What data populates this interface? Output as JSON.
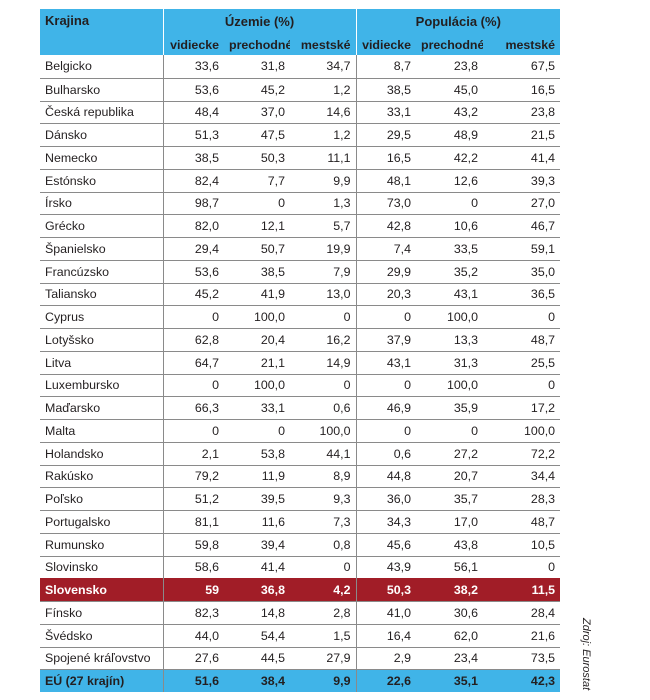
{
  "table": {
    "header": {
      "country": "Krajina",
      "group_area": "Územie (%)",
      "group_population": "Populácia (%)",
      "sub": [
        "vidiecke",
        "prechodné",
        "mestské",
        "vidiecke",
        "prechodné",
        "mestské"
      ]
    },
    "rows": [
      [
        "Belgicko",
        "33,6",
        "31,8",
        "34,7",
        "8,7",
        "23,8",
        "67,5"
      ],
      [
        "Bulharsko",
        "53,6",
        "45,2",
        "1,2",
        "38,5",
        "45,0",
        "16,5"
      ],
      [
        "Česká republika",
        "48,4",
        "37,0",
        "14,6",
        "33,1",
        "43,2",
        "23,8"
      ],
      [
        "Dánsko",
        "51,3",
        "47,5",
        "1,2",
        "29,5",
        "48,9",
        "21,5"
      ],
      [
        "Nemecko",
        "38,5",
        "50,3",
        "11,1",
        "16,5",
        "42,2",
        "41,4"
      ],
      [
        "Estónsko",
        "82,4",
        "7,7",
        "9,9",
        "48,1",
        "12,6",
        "39,3"
      ],
      [
        "Írsko",
        "98,7",
        "0",
        "1,3",
        "73,0",
        "0",
        "27,0"
      ],
      [
        "Grécko",
        "82,0",
        "12,1",
        "5,7",
        "42,8",
        "10,6",
        "46,7"
      ],
      [
        "Španielsko",
        "29,4",
        "50,7",
        "19,9",
        "7,4",
        "33,5",
        "59,1"
      ],
      [
        "Francúzsko",
        "53,6",
        "38,5",
        "7,9",
        "29,9",
        "35,2",
        "35,0"
      ],
      [
        "Taliansko",
        "45,2",
        "41,9",
        "13,0",
        "20,3",
        "43,1",
        "36,5"
      ],
      [
        "Cyprus",
        "0",
        "100,0",
        "0",
        "0",
        "100,0",
        "0"
      ],
      [
        "Lotyšsko",
        "62,8",
        "20,4",
        "16,2",
        "37,9",
        "13,3",
        "48,7"
      ],
      [
        "Litva",
        "64,7",
        "21,1",
        "14,9",
        "43,1",
        "31,3",
        "25,5"
      ],
      [
        "Luxembursko",
        "0",
        "100,0",
        "0",
        "0",
        "100,0",
        "0"
      ],
      [
        "Maďarsko",
        "66,3",
        "33,1",
        "0,6",
        "46,9",
        "35,9",
        "17,2"
      ],
      [
        "Malta",
        "0",
        "0",
        "100,0",
        "0",
        "0",
        "100,0"
      ],
      [
        "Holandsko",
        "2,1",
        "53,8",
        "44,1",
        "0,6",
        "27,2",
        "72,2"
      ],
      [
        "Rakúsko",
        "79,2",
        "11,9",
        "8,9",
        "44,8",
        "20,7",
        "34,4"
      ],
      [
        "Poľsko",
        "51,2",
        "39,5",
        "9,3",
        "36,0",
        "35,7",
        "28,3"
      ],
      [
        "Portugalsko",
        "81,1",
        "11,6",
        "7,3",
        "34,3",
        "17,0",
        "48,7"
      ],
      [
        "Rumunsko",
        "59,8",
        "39,4",
        "0,8",
        "45,6",
        "43,8",
        "10,5"
      ],
      [
        "Slovinsko",
        "58,6",
        "41,4",
        "0",
        "43,9",
        "56,1",
        "0"
      ],
      [
        "Slovensko",
        "59",
        "36,8",
        "4,2",
        "50,3",
        "38,2",
        "11,5"
      ],
      [
        "Fínsko",
        "82,3",
        "14,8",
        "2,8",
        "41,0",
        "30,6",
        "28,4"
      ],
      [
        "Švédsko",
        "44,0",
        "54,4",
        "1,5",
        "16,4",
        "62,0",
        "21,6"
      ],
      [
        "Spojené kráľovstvo",
        "27,6",
        "44,5",
        "27,9",
        "2,9",
        "23,4",
        "73,5"
      ]
    ],
    "highlight_row_index": 23,
    "total_row": [
      "EÚ (27 krajín)",
      "51,6",
      "38,4",
      "9,9",
      "22,6",
      "35,1",
      "42,3"
    ]
  },
  "source": "Zdroj: Eurostat",
  "colors": {
    "header": "#40b4e8",
    "highlight": "#a11d27",
    "grid": "#8a8a8a"
  }
}
